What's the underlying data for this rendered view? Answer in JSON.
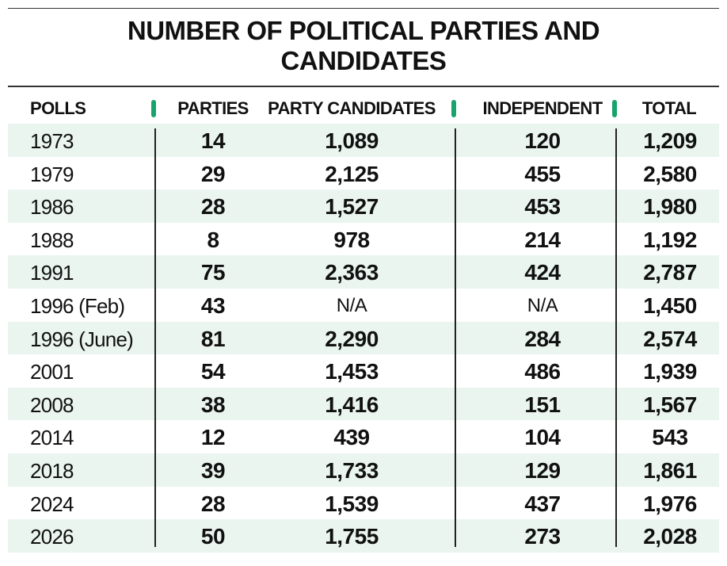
{
  "title": {
    "line1": "NUMBER OF POLITICAL PARTIES AND",
    "line2": "CANDIDATES"
  },
  "headers": {
    "polls": "POLLS",
    "parties": "PARTIES",
    "party_candidates": "PARTY CANDIDATES",
    "independent": "INDEPENDENT",
    "total": "TOTAL"
  },
  "colors": {
    "accent": "#17a36b",
    "row_shade": "#eaf5f0",
    "text": "#111111"
  },
  "rows": [
    {
      "poll": "1973",
      "parties": "14",
      "party_candidates": "1,089",
      "independent": "120",
      "total": "1,209"
    },
    {
      "poll": "1979",
      "parties": "29",
      "party_candidates": "2,125",
      "independent": "455",
      "total": "2,580"
    },
    {
      "poll": "1986",
      "parties": "28",
      "party_candidates": "1,527",
      "independent": "453",
      "total": "1,980"
    },
    {
      "poll": "1988",
      "parties": "8",
      "party_candidates": "978",
      "independent": "214",
      "total": "1,192"
    },
    {
      "poll": "1991",
      "parties": "75",
      "party_candidates": "2,363",
      "independent": "424",
      "total": "2,787"
    },
    {
      "poll": "1996 (Feb)",
      "parties": "43",
      "party_candidates": "N/A",
      "independent": "N/A",
      "total": "1,450"
    },
    {
      "poll": "1996 (June)",
      "parties": "81",
      "party_candidates": "2,290",
      "independent": "284",
      "total": "2,574"
    },
    {
      "poll": "2001",
      "parties": "54",
      "party_candidates": "1,453",
      "independent": "486",
      "total": "1,939"
    },
    {
      "poll": "2008",
      "parties": "38",
      "party_candidates": "1,416",
      "independent": "151",
      "total": "1,567"
    },
    {
      "poll": "2014",
      "parties": "12",
      "party_candidates": "439",
      "independent": "104",
      "total": "543"
    },
    {
      "poll": "2018",
      "parties": "39",
      "party_candidates": "1,733",
      "independent": "129",
      "total": "1,861"
    },
    {
      "poll": "2024",
      "parties": "28",
      "party_candidates": "1,539",
      "independent": "437",
      "total": "1,976"
    },
    {
      "poll": "2026",
      "parties": "50",
      "party_candidates": "1,755",
      "independent": "273",
      "total": "2,028"
    }
  ]
}
